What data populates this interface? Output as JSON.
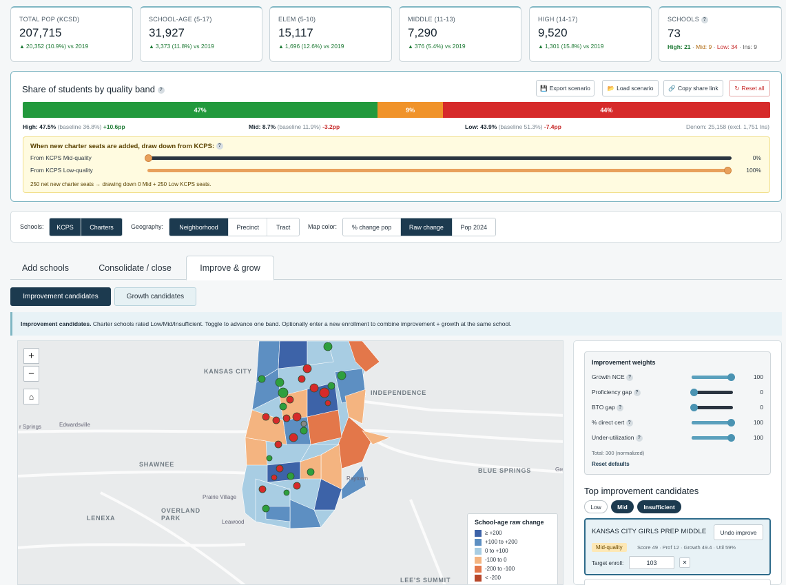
{
  "kpis": [
    {
      "label": "TOTAL POP (KCSD)",
      "value": "207,715",
      "delta": "20,352 (10.9%) vs 2019"
    },
    {
      "label": "SCHOOL-AGE (5-17)",
      "value": "31,927",
      "delta": "3,373 (11.8%) vs 2019"
    },
    {
      "label": "ELEM (5-10)",
      "value": "15,117",
      "delta": "1,696 (12.6%) vs 2019"
    },
    {
      "label": "MIDDLE (11-13)",
      "value": "7,290",
      "delta": "376 (5.4%) vs 2019"
    },
    {
      "label": "HIGH (14-17)",
      "value": "9,520",
      "delta": "1,301 (15.8%) vs 2019"
    }
  ],
  "schools": {
    "label": "SCHOOLS",
    "help": "?",
    "value": "73",
    "high": "High: 21",
    "mid": "Mid: 9",
    "low": "Low: 34",
    "ins": "Ins: 9",
    "sep": " · "
  },
  "quality": {
    "title": "Share of students by quality band",
    "help": "?",
    "buttons": {
      "export": "Export scenario",
      "load": "Load scenario",
      "copy": "Copy share link",
      "reset": "Reset all"
    },
    "bar": {
      "high_label": "47%",
      "mid_label": "9%",
      "low_label": "44%",
      "high_share": 47.5,
      "mid_share": 8.7,
      "low_share": 43.8
    },
    "high_line": {
      "name": "High:",
      "value": "47.5%",
      "baseline": "(baseline 36.8%)",
      "change": "+10.6pp"
    },
    "mid_line": {
      "name": "Mid:",
      "value": "8.7%",
      "baseline": "(baseline 11.9%)",
      "change": "-3.2pp"
    },
    "low_line": {
      "name": "Low:",
      "value": "43.9%",
      "baseline": "(baseline 51.3%)",
      "change": "-7.4pp"
    },
    "denom": "Denom: 25,158 (excl. 1,751 Ins)",
    "charter": {
      "title": "When new charter seats are added, draw down from KCPS:",
      "help": "?",
      "mid_label": "From KCPS Mid-quality",
      "mid_pct": "0%",
      "mid_value": 0,
      "low_label": "From KCPS Low-quality",
      "low_pct": "100%",
      "low_value": 100,
      "note": "250 net new charter seats → drawing down 0 Mid + 250 Low KCPS seats."
    }
  },
  "toggles": {
    "schools_label": "Schools:",
    "schools": [
      "KCPS",
      "Charters"
    ],
    "geo_label": "Geography:",
    "geo": [
      "Neighborhood",
      "Precinct",
      "Tract"
    ],
    "color_label": "Map color:",
    "color": [
      "% change pop",
      "Raw change",
      "Pop 2024"
    ]
  },
  "tabs": [
    "Add schools",
    "Consolidate / close",
    "Improve & grow"
  ],
  "subtabs": [
    "Improvement candidates",
    "Growth candidates"
  ],
  "info": {
    "bold": "Improvement candidates.",
    "text": " Charter schools rated Low/Mid/Insufficient. Toggle to advance one band. Optionally enter a new enrollment to combine improvement + growth at the same school."
  },
  "map": {
    "zoom_in": "+",
    "zoom_out": "−",
    "home": "⌂",
    "labels": [
      "KANSAS CITY",
      "INDEPENDENCE",
      "SHAWNEE",
      "OVERLAND PARK",
      "LENEXA",
      "BLUE SPRINGS",
      "LEE'S SUMMIT"
    ],
    "small_labels": [
      "r Springs",
      "Edwardsville",
      "Raytown",
      "Prairie Village",
      "Leawood",
      "Gre"
    ],
    "legend": {
      "title": "School-age raw change",
      "items": [
        {
          "label": "≥ +200",
          "color": "#3d63a8"
        },
        {
          "label": "+100 to +200",
          "color": "#5d8fc2"
        },
        {
          "label": "0 to +100",
          "color": "#a8cde3"
        },
        {
          "label": "-100 to 0",
          "color": "#f4b480"
        },
        {
          "label": "-200 to -100",
          "color": "#e3774a"
        },
        {
          "label": "< -200",
          "color": "#b8472a"
        }
      ]
    }
  },
  "weights": {
    "title": "Improvement weights",
    "items": [
      {
        "label": "Growth NCE",
        "value": "100",
        "level": 100
      },
      {
        "label": "Proficiency gap",
        "value": "0",
        "level": 0
      },
      {
        "label": "BTO gap",
        "value": "0",
        "level": 0
      },
      {
        "label": "% direct cert",
        "value": "100",
        "level": 100
      },
      {
        "label": "Under-utilization",
        "value": "100",
        "level": 100
      }
    ],
    "help": "?",
    "total": "Total: 300 (normalized)",
    "reset": "Reset defaults"
  },
  "top": {
    "title": "Top improvement candidates",
    "filters": [
      "Low",
      "Mid",
      "Insufficient"
    ],
    "candidate": {
      "name": "KANSAS CITY GIRLS PREP MIDDLE",
      "undo": "Undo improve",
      "band": "Mid-quality",
      "meta": "Score 49 · Prof 12 · Growth 49.4 · Util 59%",
      "target_label": "Target enroll:",
      "target_value": "103",
      "clear": "✕"
    }
  }
}
